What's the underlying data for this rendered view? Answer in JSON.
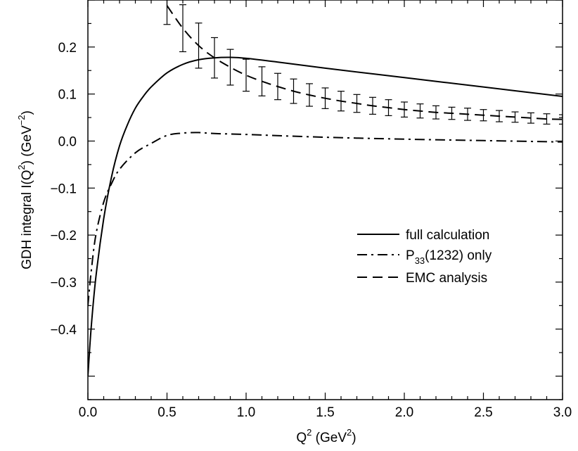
{
  "chart_data": {
    "type": "line",
    "xlabel": {
      "base": "Q",
      "sup": "2",
      "unit_open": " (GeV",
      "unit_sup": "2",
      "unit_close": ")"
    },
    "ylabel": {
      "pre": "GDH integral I(Q",
      "sup1": "2",
      "mid": ") (GeV",
      "sup2": "−2",
      "post": ")"
    },
    "xlim": [
      0.0,
      3.0
    ],
    "ylim": [
      -0.55,
      0.3
    ],
    "x_ticks": [
      0.0,
      0.5,
      1.0,
      1.5,
      2.0,
      2.5,
      3.0
    ],
    "x_tick_labels": [
      "0.0",
      "0.5",
      "1.0",
      "1.5",
      "2.0",
      "2.5",
      "3.0"
    ],
    "y_ticks": [
      -0.4,
      -0.3,
      -0.2,
      -0.1,
      0.0,
      0.1,
      0.2
    ],
    "y_tick_labels": [
      "−0.4",
      "−0.3",
      "−0.2",
      "−0.1",
      "0.0",
      "0.1",
      "0.2"
    ],
    "grid": false,
    "legend_position": "right-middle",
    "series": [
      {
        "name": "full calculation",
        "style": "solid",
        "x": [
          0.0,
          0.02,
          0.05,
          0.1,
          0.15,
          0.2,
          0.25,
          0.3,
          0.35,
          0.4,
          0.5,
          0.6,
          0.7,
          0.8,
          0.9,
          1.0,
          1.2,
          1.5,
          2.0,
          2.5,
          3.0
        ],
        "y": [
          -0.5,
          -0.4,
          -0.29,
          -0.165,
          -0.075,
          -0.01,
          0.035,
          0.07,
          0.095,
          0.115,
          0.145,
          0.163,
          0.173,
          0.177,
          0.178,
          0.176,
          0.168,
          0.155,
          0.135,
          0.115,
          0.095
        ]
      },
      {
        "name_base": "P",
        "name_sub": "33",
        "name_rest": "(1232) only",
        "style": "dashdot",
        "x": [
          0.0,
          0.02,
          0.05,
          0.1,
          0.15,
          0.2,
          0.3,
          0.4,
          0.5,
          0.6,
          0.7,
          0.8,
          1.0,
          1.5,
          2.0,
          2.5,
          3.0
        ],
        "y": [
          -0.35,
          -0.28,
          -0.2,
          -0.13,
          -0.09,
          -0.06,
          -0.025,
          -0.005,
          0.012,
          0.017,
          0.018,
          0.016,
          0.014,
          0.008,
          0.004,
          0.001,
          -0.002
        ]
      },
      {
        "name": "EMC analysis",
        "style": "dashed",
        "x": [
          0.5,
          0.6,
          0.7,
          0.8,
          0.9,
          1.0,
          1.1,
          1.2,
          1.3,
          1.4,
          1.5,
          1.6,
          1.7,
          1.8,
          1.9,
          2.0,
          2.1,
          2.2,
          2.3,
          2.4,
          2.5,
          2.6,
          2.7,
          2.8,
          2.9,
          3.0
        ],
        "y": [
          0.288,
          0.24,
          0.203,
          0.177,
          0.157,
          0.14,
          0.127,
          0.116,
          0.106,
          0.098,
          0.091,
          0.085,
          0.08,
          0.075,
          0.071,
          0.067,
          0.064,
          0.061,
          0.059,
          0.057,
          0.055,
          0.053,
          0.051,
          0.049,
          0.047,
          0.046
        ],
        "err": [
          0.04,
          0.05,
          0.048,
          0.043,
          0.038,
          0.034,
          0.031,
          0.028,
          0.026,
          0.024,
          0.022,
          0.021,
          0.019,
          0.018,
          0.017,
          0.016,
          0.015,
          0.014,
          0.013,
          0.013,
          0.012,
          0.012,
          0.011,
          0.011,
          0.011,
          0.01
        ]
      }
    ]
  }
}
